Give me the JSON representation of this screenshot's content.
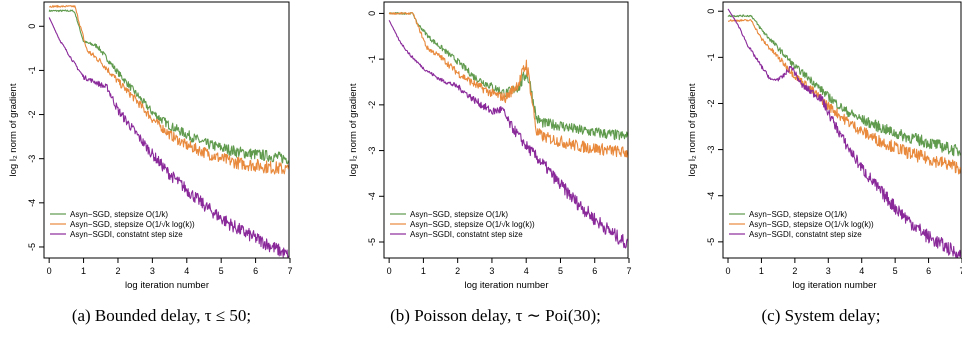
{
  "figure": {
    "captions": [
      "(a) Bounded delay, τ ≤ 50;",
      "(b) Poisson delay, τ ∼ Poi(30);",
      "(c) System delay;"
    ]
  },
  "colors": {
    "series1": "#5f9a4d",
    "series2": "#e8893c",
    "series3": "#8a2a9a"
  },
  "chart_data": [
    {
      "type": "line",
      "xlabel": "log iteration number",
      "ylabel": "log l₂ norm of gradient",
      "xticks": [
        0,
        1,
        2,
        3,
        4,
        5,
        6,
        7
      ],
      "yticks": [
        0,
        -1,
        -2,
        -3,
        -4,
        -5
      ],
      "xlim": [
        -0.15,
        7.0
      ],
      "ylim": [
        -5.25,
        0.55
      ],
      "legend": {
        "position": "bottom-left"
      },
      "series": [
        {
          "name": "Asyn−SGD, stepsize O(1/k)",
          "points": [
            [
              0,
              0.35
            ],
            [
              0.7,
              0.35
            ],
            [
              0.75,
              0.3
            ],
            [
              1.0,
              -0.35
            ],
            [
              1.4,
              -0.45
            ],
            [
              1.7,
              -0.75
            ],
            [
              2.0,
              -1.05
            ],
            [
              2.5,
              -1.5
            ],
            [
              3.0,
              -1.95
            ],
            [
              3.5,
              -2.25
            ],
            [
              4.0,
              -2.45
            ],
            [
              4.5,
              -2.65
            ],
            [
              5.0,
              -2.75
            ],
            [
              5.5,
              -2.85
            ],
            [
              6.0,
              -2.9
            ],
            [
              6.5,
              -2.95
            ],
            [
              6.95,
              -3.0
            ]
          ],
          "noise": [
            0.02,
            0.02,
            0.02,
            0.03,
            0.05,
            0.06,
            0.07,
            0.08,
            0.09,
            0.1,
            0.11,
            0.12,
            0.12,
            0.13,
            0.13,
            0.13,
            0.13
          ]
        },
        {
          "name": "Asyn−SGD, stepsize O(1/√k log(k))",
          "points": [
            [
              0,
              0.45
            ],
            [
              0.75,
              0.45
            ],
            [
              0.8,
              0.3
            ],
            [
              1.1,
              -0.55
            ],
            [
              1.5,
              -0.8
            ],
            [
              2.0,
              -1.25
            ],
            [
              2.5,
              -1.65
            ],
            [
              3.0,
              -2.1
            ],
            [
              3.5,
              -2.45
            ],
            [
              4.0,
              -2.7
            ],
            [
              4.5,
              -2.85
            ],
            [
              5.0,
              -3.0
            ],
            [
              5.5,
              -3.1
            ],
            [
              6.0,
              -3.15
            ],
            [
              6.5,
              -3.2
            ],
            [
              6.95,
              -3.25
            ]
          ],
          "noise": [
            0.02,
            0.02,
            0.03,
            0.06,
            0.07,
            0.08,
            0.09,
            0.1,
            0.11,
            0.12,
            0.13,
            0.14,
            0.14,
            0.15,
            0.15,
            0.15
          ]
        },
        {
          "name": "Asyn−SGDI, constatnt step size",
          "points": [
            [
              0,
              0.2
            ],
            [
              0.3,
              -0.3
            ],
            [
              0.7,
              -0.8
            ],
            [
              1.0,
              -1.15
            ],
            [
              1.3,
              -1.25
            ],
            [
              1.7,
              -1.4
            ],
            [
              2.0,
              -1.9
            ],
            [
              2.5,
              -2.4
            ],
            [
              3.0,
              -2.9
            ],
            [
              3.5,
              -3.35
            ],
            [
              4.0,
              -3.7
            ],
            [
              4.5,
              -4.05
            ],
            [
              5.0,
              -4.35
            ],
            [
              5.5,
              -4.6
            ],
            [
              6.0,
              -4.8
            ],
            [
              6.5,
              -5.0
            ],
            [
              6.95,
              -5.2
            ]
          ],
          "noise": [
            0.0,
            0.02,
            0.03,
            0.05,
            0.05,
            0.08,
            0.1,
            0.11,
            0.12,
            0.13,
            0.14,
            0.14,
            0.15,
            0.15,
            0.15,
            0.15,
            0.15
          ]
        }
      ]
    },
    {
      "type": "line",
      "xlabel": "log iteration number",
      "ylabel": "log l₂ norm of gradient",
      "xticks": [
        0,
        1,
        2,
        3,
        4,
        5,
        6,
        7
      ],
      "yticks": [
        0,
        -1,
        -2,
        -3,
        -4,
        -5
      ],
      "xlim": [
        -0.15,
        7.0
      ],
      "ylim": [
        -5.35,
        0.25
      ],
      "legend": {
        "position": "bottom-left"
      },
      "series": [
        {
          "name": "Asyn−SGD, stepsize O(1/k)",
          "points": [
            [
              0,
              0.0
            ],
            [
              0.7,
              0.0
            ],
            [
              0.8,
              -0.2
            ],
            [
              1.2,
              -0.55
            ],
            [
              1.6,
              -0.8
            ],
            [
              2.0,
              -1.05
            ],
            [
              2.5,
              -1.4
            ],
            [
              3.0,
              -1.6
            ],
            [
              3.4,
              -1.75
            ],
            [
              3.8,
              -1.6
            ],
            [
              4.0,
              -1.3
            ],
            [
              4.1,
              -1.5
            ],
            [
              4.3,
              -2.3
            ],
            [
              4.5,
              -2.4
            ],
            [
              5.0,
              -2.45
            ],
            [
              5.5,
              -2.55
            ],
            [
              6.0,
              -2.6
            ],
            [
              6.5,
              -2.65
            ],
            [
              6.95,
              -2.7
            ]
          ],
          "noise": [
            0.02,
            0.02,
            0.03,
            0.05,
            0.06,
            0.07,
            0.08,
            0.09,
            0.1,
            0.12,
            0.15,
            0.15,
            0.12,
            0.11,
            0.12,
            0.12,
            0.12,
            0.12,
            0.12
          ]
        },
        {
          "name": "Asyn−SGD, stepsize O(1/√k log(k))",
          "points": [
            [
              0,
              0.0
            ],
            [
              0.7,
              0.0
            ],
            [
              0.8,
              -0.2
            ],
            [
              1.1,
              -0.75
            ],
            [
              1.5,
              -0.95
            ],
            [
              2.0,
              -1.3
            ],
            [
              2.5,
              -1.55
            ],
            [
              3.0,
              -1.75
            ],
            [
              3.4,
              -1.85
            ],
            [
              3.8,
              -1.5
            ],
            [
              4.0,
              -1.1
            ],
            [
              4.1,
              -1.5
            ],
            [
              4.3,
              -2.6
            ],
            [
              4.5,
              -2.7
            ],
            [
              5.0,
              -2.8
            ],
            [
              5.5,
              -2.9
            ],
            [
              6.0,
              -2.95
            ],
            [
              6.5,
              -3.0
            ],
            [
              6.95,
              -3.05
            ]
          ],
          "noise": [
            0.02,
            0.02,
            0.03,
            0.05,
            0.06,
            0.08,
            0.09,
            0.1,
            0.11,
            0.13,
            0.18,
            0.15,
            0.13,
            0.12,
            0.13,
            0.13,
            0.13,
            0.13,
            0.13
          ]
        },
        {
          "name": "Asyn−SGDI, constatnt step size",
          "points": [
            [
              0,
              -0.15
            ],
            [
              0.3,
              -0.6
            ],
            [
              0.6,
              -0.9
            ],
            [
              1.0,
              -1.2
            ],
            [
              1.5,
              -1.45
            ],
            [
              2.0,
              -1.6
            ],
            [
              2.5,
              -1.9
            ],
            [
              3.0,
              -2.15
            ],
            [
              3.3,
              -2.1
            ],
            [
              3.5,
              -2.4
            ],
            [
              4.0,
              -2.9
            ],
            [
              4.5,
              -3.3
            ],
            [
              5.0,
              -3.75
            ],
            [
              5.5,
              -4.15
            ],
            [
              6.0,
              -4.5
            ],
            [
              6.5,
              -4.8
            ],
            [
              6.95,
              -5.05
            ]
          ],
          "noise": [
            0.0,
            0.02,
            0.03,
            0.03,
            0.04,
            0.06,
            0.08,
            0.09,
            0.1,
            0.11,
            0.12,
            0.13,
            0.14,
            0.15,
            0.15,
            0.15,
            0.15
          ]
        }
      ]
    },
    {
      "type": "line",
      "xlabel": "log iteration number",
      "ylabel": "log l₂ norm of gradient",
      "xticks": [
        0,
        1,
        2,
        3,
        4,
        5,
        6,
        7
      ],
      "yticks": [
        0,
        -1,
        -2,
        -3,
        -4,
        -5
      ],
      "xlim": [
        -0.15,
        7.0
      ],
      "ylim": [
        -5.35,
        0.2
      ],
      "legend": {
        "position": "bottom-left"
      },
      "series": [
        {
          "name": "Asyn−SGD, stepsize O(1/k)",
          "points": [
            [
              0,
              -0.1
            ],
            [
              0.7,
              -0.1
            ],
            [
              1.0,
              -0.4
            ],
            [
              1.5,
              -0.8
            ],
            [
              2.0,
              -1.2
            ],
            [
              2.5,
              -1.5
            ],
            [
              3.0,
              -1.85
            ],
            [
              3.5,
              -2.15
            ],
            [
              4.0,
              -2.35
            ],
            [
              4.5,
              -2.5
            ],
            [
              5.0,
              -2.65
            ],
            [
              5.5,
              -2.75
            ],
            [
              6.0,
              -2.85
            ],
            [
              6.5,
              -2.95
            ],
            [
              6.95,
              -3.05
            ]
          ],
          "noise": [
            0.02,
            0.02,
            0.04,
            0.06,
            0.07,
            0.08,
            0.09,
            0.1,
            0.11,
            0.12,
            0.12,
            0.13,
            0.13,
            0.13,
            0.13
          ]
        },
        {
          "name": "Asyn−SGD, stepsize O(1/√k log(k))",
          "points": [
            [
              0,
              -0.2
            ],
            [
              0.7,
              -0.2
            ],
            [
              1.0,
              -0.6
            ],
            [
              1.5,
              -1.0
            ],
            [
              2.0,
              -1.4
            ],
            [
              2.5,
              -1.7
            ],
            [
              3.0,
              -2.05
            ],
            [
              3.5,
              -2.35
            ],
            [
              4.0,
              -2.6
            ],
            [
              4.5,
              -2.8
            ],
            [
              5.0,
              -2.95
            ],
            [
              5.5,
              -3.1
            ],
            [
              6.0,
              -3.2
            ],
            [
              6.5,
              -3.3
            ],
            [
              6.95,
              -3.4
            ]
          ],
          "noise": [
            0.02,
            0.02,
            0.04,
            0.06,
            0.08,
            0.09,
            0.1,
            0.11,
            0.12,
            0.13,
            0.13,
            0.14,
            0.14,
            0.14,
            0.14
          ]
        },
        {
          "name": "Asyn−SGDI, constatnt step size",
          "points": [
            [
              0,
              0.05
            ],
            [
              0.3,
              -0.3
            ],
            [
              0.6,
              -0.75
            ],
            [
              1.0,
              -1.2
            ],
            [
              1.3,
              -1.5
            ],
            [
              1.6,
              -1.45
            ],
            [
              1.9,
              -1.2
            ],
            [
              2.2,
              -1.6
            ],
            [
              2.5,
              -1.75
            ],
            [
              2.8,
              -1.9
            ],
            [
              3.0,
              -2.2
            ],
            [
              3.5,
              -2.85
            ],
            [
              4.0,
              -3.4
            ],
            [
              4.5,
              -3.85
            ],
            [
              5.0,
              -4.25
            ],
            [
              5.5,
              -4.6
            ],
            [
              6.0,
              -4.9
            ],
            [
              6.5,
              -5.1
            ],
            [
              6.95,
              -5.3
            ]
          ],
          "noise": [
            0.0,
            0.02,
            0.03,
            0.04,
            0.04,
            0.05,
            0.06,
            0.07,
            0.08,
            0.09,
            0.1,
            0.12,
            0.13,
            0.14,
            0.15,
            0.15,
            0.15,
            0.15,
            0.15
          ]
        }
      ]
    }
  ]
}
